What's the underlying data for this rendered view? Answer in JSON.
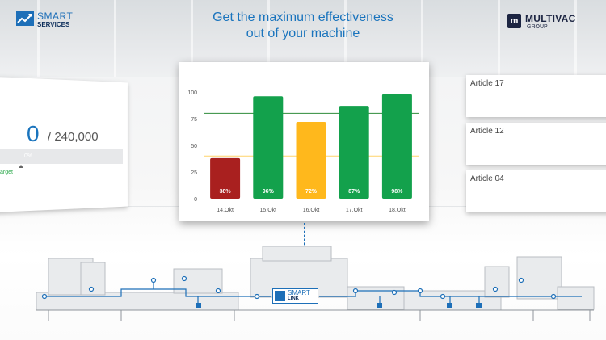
{
  "header": {
    "smart_services_line1": "SMART",
    "smart_services_line2": "SERVICES",
    "headline_line1": "Get the maximum effectiveness",
    "headline_line2": "out of your machine",
    "multivac_name": "MULTIVAC",
    "multivac_group": "GROUP",
    "multivac_mark": "m"
  },
  "left_panel": {
    "count": "0",
    "total": "/ 240,000",
    "progress_text": "0%",
    "target_label": "arget"
  },
  "articles": [
    "Article 17",
    "Article 12",
    "Article 04"
  ],
  "smart_link": {
    "line1": "SMART",
    "line2": "LINK"
  },
  "colors": {
    "accent": "#1a74bd",
    "bar_red": "#a9201f",
    "bar_green": "#13a14c",
    "bar_yellow": "#ffb81c",
    "target_green_line": "#2e8b3a",
    "threshold_yellow_line": "#ffd36a"
  },
  "chart_data": {
    "type": "bar",
    "categories": [
      "14.Okt",
      "15.Okt",
      "16.Okt",
      "17.Okt",
      "18.Okt"
    ],
    "values": [
      38,
      96,
      72,
      87,
      98
    ],
    "data_labels": [
      "38%",
      "96%",
      "72%",
      "87%",
      "98%"
    ],
    "bar_colors": [
      "#a9201f",
      "#13a14c",
      "#ffb81c",
      "#13a14c",
      "#13a14c"
    ],
    "reference_lines": [
      {
        "value": 80,
        "color": "#2e8b3a"
      },
      {
        "value": 40,
        "color": "#ffd36a"
      }
    ],
    "yticks": [
      0,
      25,
      50,
      75,
      100
    ],
    "ylim": [
      0,
      100
    ],
    "grid": false,
    "title": "",
    "xlabel": "",
    "ylabel": ""
  }
}
